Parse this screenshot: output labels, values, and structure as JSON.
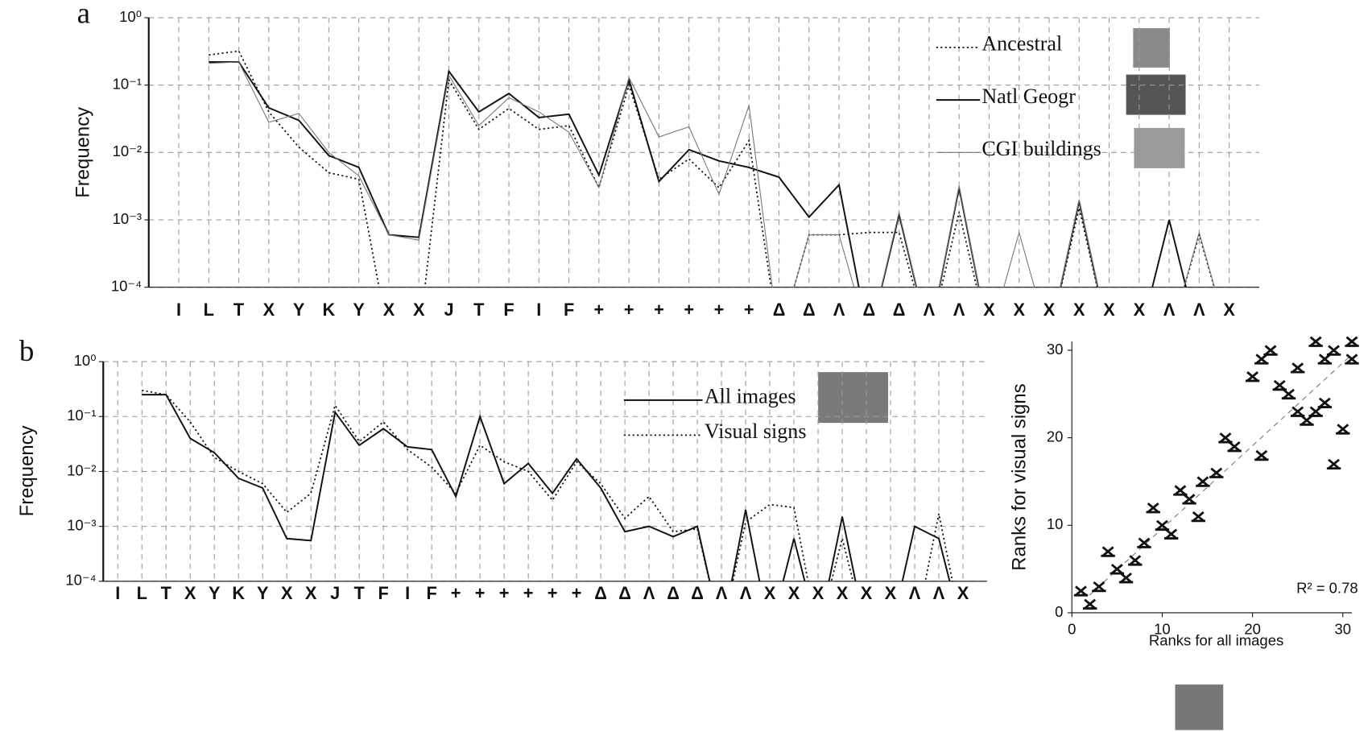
{
  "chart_data": [
    {
      "type": "line",
      "panel_label": "a",
      "ylabel": "Frequency",
      "log": true,
      "grid": true,
      "categories": [
        "I",
        "L",
        "T",
        "X",
        "Y",
        "K",
        "Y",
        "X",
        "X",
        "J",
        "T",
        "F",
        "I",
        "F",
        "+",
        "+",
        "+",
        "+",
        "+",
        "+",
        "Δ",
        "Δ",
        "Λ",
        "Δ",
        "Δ",
        "Λ",
        "Λ",
        "X",
        "X",
        "X",
        "X",
        "X",
        "X",
        "Λ",
        "Λ",
        "X"
      ],
      "ylim": [
        0.0001,
        1
      ],
      "yticks": [
        {
          "value": 1,
          "label": "10⁰"
        },
        {
          "value": 0.1,
          "label": "10⁻¹"
        },
        {
          "value": 0.01,
          "label": "10⁻²"
        },
        {
          "value": 0.001,
          "label": "10⁻³"
        },
        {
          "value": 0.0001,
          "label": "10⁻⁴"
        }
      ],
      "series": [
        {
          "name": "Ancestral",
          "color": "#111111",
          "style": "dotted",
          "values": [
            null,
            0.28,
            0.32,
            0.04,
            0.012,
            0.005,
            0.004,
            0,
            0,
            0.12,
            0.022,
            0.045,
            0.022,
            0.025,
            0.003,
            0.1,
            0.004,
            0.008,
            0.003,
            0.015,
            0,
            0.0006,
            0.0006,
            0.00065,
            0.00065,
            0,
            0.0013,
            0,
            0,
            0,
            0.0015,
            0,
            0,
            0,
            0.0006,
            0
          ]
        },
        {
          "name": "Natl Geogr",
          "color": "#111111",
          "style": "solid",
          "values": [
            null,
            0.22,
            0.22,
            0.046,
            0.03,
            0.009,
            0.006,
            0.0006,
            0.00055,
            0.16,
            0.04,
            0.075,
            0.033,
            0.037,
            0.0046,
            0.12,
            0.0037,
            0.011,
            0.0075,
            0.006,
            0.0043,
            0.0011,
            0.0033,
            0,
            0.0012,
            0,
            0.003,
            0,
            0,
            0,
            0.0019,
            0,
            0,
            0.001,
            0,
            0
          ]
        },
        {
          "name": "CGI buildings",
          "color": "#777777",
          "style": "thin",
          "values": [
            null,
            0.21,
            0.22,
            0.028,
            0.038,
            0.01,
            0.0045,
            0.0006,
            0.0005,
            0.14,
            0.025,
            0.065,
            0.04,
            0.02,
            0.003,
            0.13,
            0.017,
            0.024,
            0.0024,
            0.05,
            0,
            0.0006,
            0.0006,
            0,
            0.0013,
            0,
            0.0032,
            0,
            0.00065,
            0,
            0.002,
            0,
            0,
            0,
            0.00065,
            0
          ]
        }
      ]
    },
    {
      "type": "line",
      "panel_label": "b",
      "ylabel": "Frequency",
      "log": true,
      "grid": true,
      "categories": [
        "I",
        "L",
        "T",
        "X",
        "Y",
        "K",
        "Y",
        "X",
        "X",
        "J",
        "T",
        "F",
        "I",
        "F",
        "+",
        "+",
        "+",
        "+",
        "+",
        "+",
        "Δ",
        "Δ",
        "Λ",
        "Δ",
        "Δ",
        "Λ",
        "Λ",
        "X",
        "X",
        "X",
        "X",
        "X",
        "X",
        "Λ",
        "Λ",
        "X"
      ],
      "ylim": [
        0.0001,
        1
      ],
      "yticks": [
        {
          "value": 1,
          "label": "10⁰"
        },
        {
          "value": 0.1,
          "label": "10⁻¹"
        },
        {
          "value": 0.01,
          "label": "10⁻²"
        },
        {
          "value": 0.001,
          "label": "10⁻³"
        },
        {
          "value": 0.0001,
          "label": "10⁻⁴"
        }
      ],
      "series": [
        {
          "name": "All images",
          "color": "#111111",
          "style": "solid",
          "values": [
            null,
            0.25,
            0.25,
            0.04,
            0.022,
            0.0075,
            0.005,
            0.0006,
            0.00055,
            0.12,
            0.03,
            0.06,
            0.028,
            0.025,
            0.0035,
            0.1,
            0.006,
            0.014,
            0.004,
            0.017,
            0.005,
            0.0008,
            0.001,
            0.00065,
            0.001,
            0,
            0.002,
            0,
            0.0006,
            0,
            0.0015,
            0,
            0,
            0.001,
            0.0006,
            0
          ]
        },
        {
          "name": "Visual signs",
          "color": "#111111",
          "style": "dotted",
          "values": [
            null,
            0.3,
            0.25,
            0.08,
            0.018,
            0.01,
            0.006,
            0.0018,
            0.004,
            0.16,
            0.035,
            0.08,
            0.025,
            0.012,
            0.004,
            0.03,
            0.015,
            0.01,
            0.003,
            0.015,
            0.006,
            0.0014,
            0.0035,
            0.0008,
            0.0009,
            0,
            0.0012,
            0.0025,
            0.0022,
            0,
            0.0006,
            0,
            0,
            0,
            0.0017,
            0
          ]
        }
      ]
    },
    {
      "type": "scatter",
      "xlabel": "Ranks for all  images",
      "ylabel": "Ranks for visual signs",
      "annotation": "R² = 0.78",
      "xlim": [
        0,
        31
      ],
      "ylim": [
        0,
        31
      ],
      "xticks": [
        0,
        10,
        20,
        30
      ],
      "yticks": [
        0,
        10,
        20,
        30
      ],
      "color": "#111111",
      "x": [
        1,
        2,
        3,
        4,
        5,
        6,
        7,
        8,
        9,
        10,
        11,
        12,
        13,
        14,
        14.5,
        16,
        17,
        18,
        20,
        21,
        21,
        22,
        23,
        24,
        25,
        25,
        26,
        27,
        27,
        28,
        28,
        29,
        29,
        30,
        31,
        31
      ],
      "values": [
        2.5,
        1,
        3,
        7,
        5,
        4,
        6,
        8,
        12,
        10,
        9,
        14,
        13,
        11,
        15,
        16,
        20,
        19,
        27,
        29,
        18,
        30,
        26,
        25,
        28,
        23,
        22,
        31,
        23,
        29,
        24,
        30,
        17,
        21,
        31,
        29
      ]
    }
  ]
}
